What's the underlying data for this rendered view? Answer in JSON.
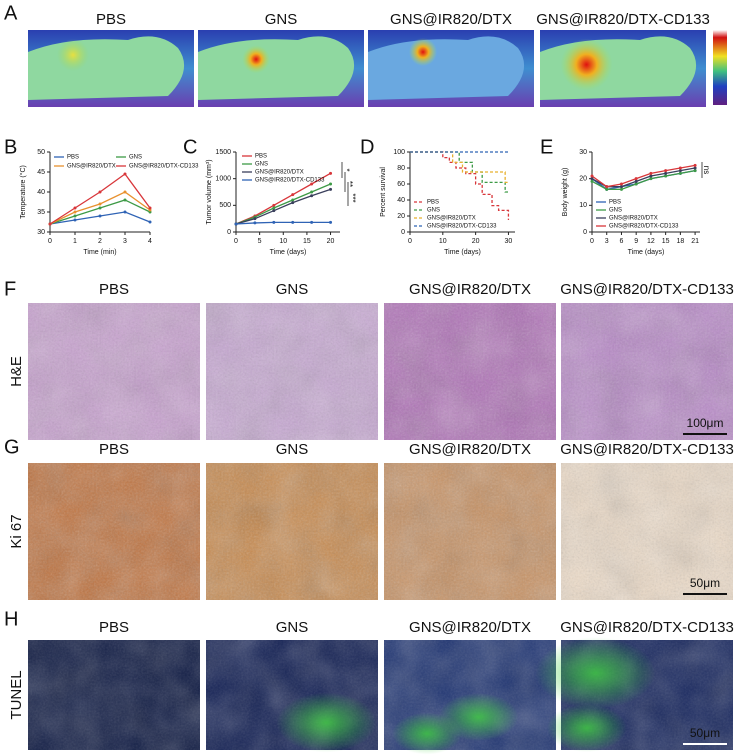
{
  "figure": {
    "panel_labels": [
      "A",
      "B",
      "C",
      "D",
      "E",
      "F",
      "G",
      "H"
    ],
    "thermal_titles": [
      "PBS",
      "GNS",
      "GNS@IR820/DTX",
      "GNS@IR820/DTX-CD133"
    ],
    "histology_rows": [
      {
        "row_label": "H&E",
        "titles": [
          "PBS",
          "GNS",
          "GNS@IR820/DTX",
          "GNS@IR820/DTX-CD133"
        ],
        "scale_bar": "100μm"
      },
      {
        "row_label": "Ki 67",
        "titles": [
          "PBS",
          "GNS",
          "GNS@IR820/DTX",
          "GNS@IR820/DTX-CD133"
        ],
        "scale_bar": "50μm"
      },
      {
        "row_label": "TUNEL",
        "titles": [
          "PBS",
          "GNS",
          "GNS@IR820/DTX",
          "GNS@IR820/DTX-CD133"
        ],
        "scale_bar": "50μm"
      }
    ]
  },
  "chart_data": [
    {
      "type": "line",
      "x_label": "Time (min)",
      "y_label": "Temperature (°C)",
      "legend": "top",
      "x": [
        0,
        1,
        2,
        3,
        4
      ],
      "xlim": [
        0,
        4
      ],
      "xticks": [
        0,
        1,
        2,
        3,
        4
      ],
      "ylim": [
        30,
        50
      ],
      "yticks": [
        30,
        35,
        40,
        45,
        50
      ],
      "series": [
        {
          "name": "PBS",
          "color": "#2f63b5",
          "values": [
            32,
            33,
            34,
            35,
            32.5
          ]
        },
        {
          "name": "GNS",
          "color": "#3d9a46",
          "values": [
            32,
            34,
            36,
            38,
            35
          ]
        },
        {
          "name": "GNS@IR820/DTX",
          "color": "#e8912f",
          "values": [
            32,
            35,
            37,
            40,
            35.5
          ]
        },
        {
          "name": "GNS@IR820/DTX-CD133",
          "color": "#d8363a",
          "values": [
            32,
            36,
            40,
            44.5,
            36
          ]
        }
      ]
    },
    {
      "type": "line",
      "x_label": "Time (days)",
      "y_label": "Tumor volume (mm³)",
      "legend": "upper left",
      "annotations": [
        "*",
        "**",
        "***"
      ],
      "x": [
        0,
        4,
        8,
        12,
        16,
        20
      ],
      "xlim": [
        0,
        22
      ],
      "xticks": [
        0,
        5,
        10,
        15,
        20
      ],
      "ylim": [
        0,
        1500
      ],
      "yticks": [
        0,
        500,
        1000,
        1500
      ],
      "series": [
        {
          "name": "PBS",
          "color": "#d8363a",
          "values": [
            150,
            300,
            500,
            700,
            900,
            1100
          ]
        },
        {
          "name": "GNS",
          "color": "#3d9a46",
          "values": [
            150,
            280,
            450,
            600,
            750,
            900
          ]
        },
        {
          "name": "GNS@IR820/DTX",
          "color": "#3a3f5c",
          "values": [
            150,
            250,
            400,
            550,
            680,
            800
          ]
        },
        {
          "name": "GNS@IR820/DTX-CD133",
          "color": "#2f63b5",
          "values": [
            150,
            170,
            180,
            180,
            180,
            180
          ]
        }
      ]
    },
    {
      "type": "line",
      "x_label": "Time (days)",
      "y_label": "Percent survival",
      "legend": "lower left",
      "line_style": "dashed",
      "xlim": [
        0,
        32
      ],
      "xticks": [
        0,
        10,
        20,
        30
      ],
      "ylim": [
        0,
        100
      ],
      "yticks": [
        0,
        20,
        40,
        60,
        80,
        100
      ],
      "series": [
        {
          "name": "PBS",
          "color": "#d8363a",
          "x": [
            0,
            10,
            10,
            12,
            12,
            14,
            14,
            17,
            17,
            20,
            20,
            22,
            22,
            25,
            25,
            27,
            27,
            30,
            30
          ],
          "values": [
            100,
            100,
            93,
            93,
            87,
            87,
            80,
            80,
            73,
            73,
            60,
            60,
            47,
            47,
            33,
            33,
            27,
            27,
            15
          ]
        },
        {
          "name": "GNS",
          "color": "#3d9a46",
          "x": [
            0,
            15,
            15,
            19,
            19,
            22,
            22,
            29,
            29,
            30
          ],
          "values": [
            100,
            100,
            87,
            87,
            75,
            75,
            62,
            62,
            50,
            50
          ]
        },
        {
          "name": "GNS@IR820/DTX",
          "color": "#e8b12f",
          "x": [
            0,
            13,
            13,
            16,
            16,
            29,
            29,
            30
          ],
          "values": [
            100,
            100,
            87,
            87,
            75,
            75,
            62,
            62
          ]
        },
        {
          "name": "GNS@IR820/DTX-CD133",
          "color": "#2f63b5",
          "x": [
            0,
            30
          ],
          "values": [
            100,
            100
          ]
        }
      ]
    },
    {
      "type": "line",
      "x_label": "Time (days)",
      "y_label": "Body weight (g)",
      "legend": "lower left",
      "annotations": [
        "ns"
      ],
      "x": [
        0,
        3,
        6,
        9,
        12,
        15,
        18,
        21
      ],
      "xlim": [
        0,
        22
      ],
      "xticks": [
        0,
        3,
        6,
        9,
        12,
        15,
        18,
        21
      ],
      "ylim": [
        0,
        30
      ],
      "yticks": [
        0,
        10,
        20,
        30
      ],
      "series": [
        {
          "name": "PBS",
          "color": "#2f63b5",
          "values": [
            20,
            16,
            17,
            18,
            20,
            21,
            22,
            23
          ]
        },
        {
          "name": "GNS",
          "color": "#3d9a46",
          "values": [
            19,
            16,
            16,
            18,
            20,
            21,
            22,
            23
          ]
        },
        {
          "name": "GNS@IR820/DTX",
          "color": "#3a3f5c",
          "values": [
            20,
            17,
            17,
            19,
            21,
            22,
            23,
            24
          ]
        },
        {
          "name": "GNS@IR820/DTX-CD133",
          "color": "#d8363a",
          "values": [
            21,
            17,
            18,
            20,
            22,
            23,
            24,
            25
          ]
        }
      ]
    }
  ]
}
